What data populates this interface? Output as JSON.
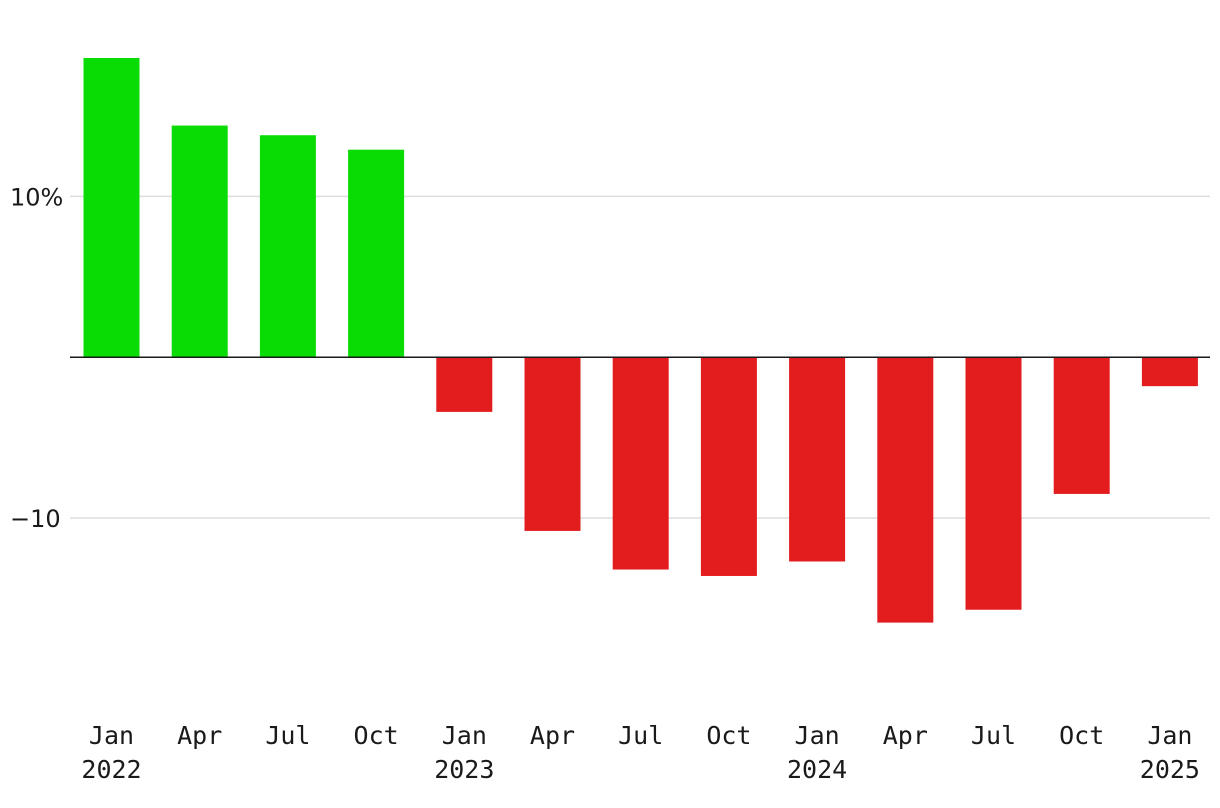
{
  "chart_data": {
    "type": "bar",
    "title": "",
    "xlabel": "",
    "ylabel": "",
    "ylim": [
      -18.7,
      18.6
    ],
    "grid": true,
    "yticks": [
      {
        "value": 10,
        "label": "10%"
      },
      {
        "value": -10,
        "label": "−10"
      }
    ],
    "categories": [
      {
        "month": "Jan",
        "year": "2022"
      },
      {
        "month": "Apr",
        "year": ""
      },
      {
        "month": "Jul",
        "year": ""
      },
      {
        "month": "Oct",
        "year": ""
      },
      {
        "month": "Jan",
        "year": "2023"
      },
      {
        "month": "Apr",
        "year": ""
      },
      {
        "month": "Jul",
        "year": ""
      },
      {
        "month": "Oct",
        "year": ""
      },
      {
        "month": "Jan",
        "year": "2024"
      },
      {
        "month": "Apr",
        "year": ""
      },
      {
        "month": "Jul",
        "year": ""
      },
      {
        "month": "Oct",
        "year": ""
      },
      {
        "month": "Jan",
        "year": "2025"
      }
    ],
    "values": [
      18.6,
      14.4,
      13.8,
      12.9,
      -3.4,
      -10.8,
      -13.2,
      -13.6,
      -12.7,
      -16.5,
      -15.7,
      -8.5,
      -1.8
    ],
    "colors": {
      "positive": "#08dc04",
      "negative": "#e31c1e",
      "grid": "#dddddd",
      "zero_line": "#1a1a1a"
    }
  }
}
